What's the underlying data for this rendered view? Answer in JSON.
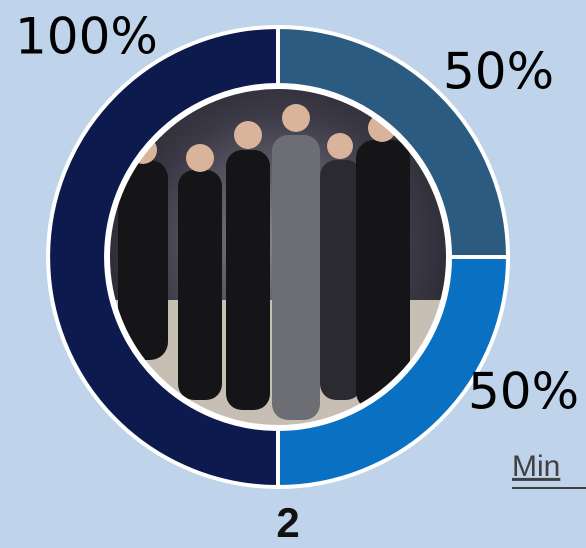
{
  "chart_data": {
    "type": "donut",
    "values": [
      50,
      50,
      100
    ],
    "value_labels": [
      "50%",
      "50%",
      "100%"
    ],
    "colors": [
      "#2b5b81",
      "#0a70c2",
      "#0c1a4e"
    ],
    "annotations": [
      "Min",
      "2"
    ]
  }
}
